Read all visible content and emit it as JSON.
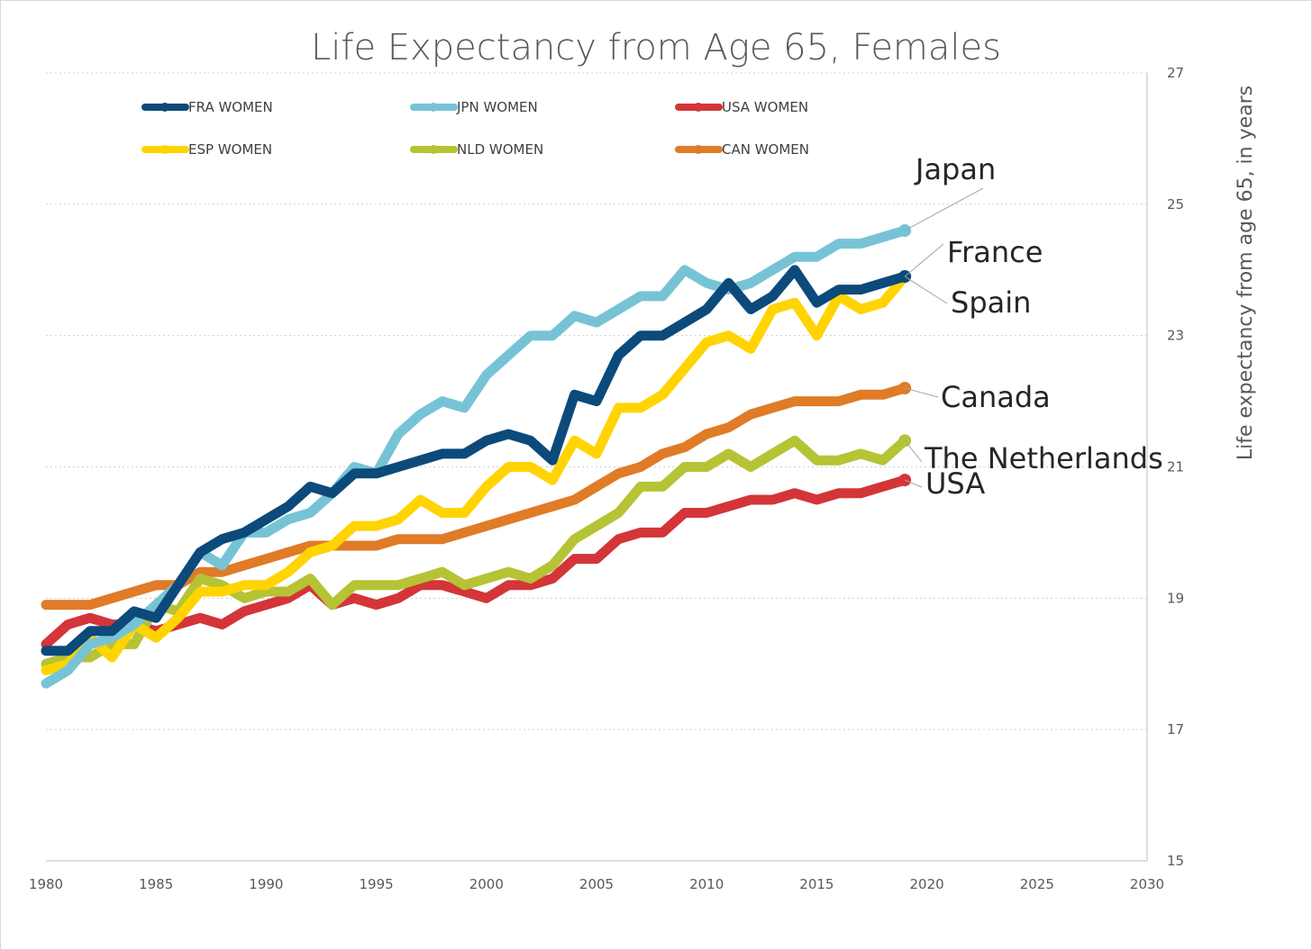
{
  "chart_data": {
    "type": "line",
    "title": "Life Expectancy from Age 65, Females",
    "ylabel": "Life expectancy from age 65, in years",
    "xlabel": "",
    "xlim": [
      1980,
      2030
    ],
    "ylim": [
      15,
      27
    ],
    "x_ticks": [
      1980,
      1985,
      1990,
      1995,
      2000,
      2005,
      2010,
      2015,
      2020,
      2025,
      2030
    ],
    "y_ticks": [
      15,
      17,
      19,
      21,
      23,
      25,
      27
    ],
    "y_axis_side": "right",
    "grid": "horizontal dotted",
    "legend_position": "top-left",
    "x": [
      1980,
      1981,
      1982,
      1983,
      1984,
      1985,
      1986,
      1987,
      1988,
      1989,
      1990,
      1991,
      1992,
      1993,
      1994,
      1995,
      1996,
      1997,
      1998,
      1999,
      2000,
      2001,
      2002,
      2003,
      2004,
      2005,
      2006,
      2007,
      2008,
      2009,
      2010,
      2011,
      2012,
      2013,
      2014,
      2015,
      2016,
      2017,
      2018,
      2019
    ],
    "series": [
      {
        "name": "FRA WOMEN",
        "color": "#0b4a7a",
        "annotation": "France",
        "values": [
          18.2,
          18.2,
          18.5,
          18.5,
          18.8,
          18.7,
          19.2,
          19.7,
          19.9,
          20.0,
          20.2,
          20.4,
          20.7,
          20.6,
          20.9,
          20.9,
          21.0,
          21.1,
          21.2,
          21.2,
          21.4,
          21.5,
          21.4,
          21.1,
          22.1,
          22.0,
          22.7,
          23.0,
          23.0,
          23.2,
          23.4,
          23.8,
          23.4,
          23.6,
          24.0,
          23.5,
          23.7,
          23.7,
          23.8,
          23.9
        ]
      },
      {
        "name": "JPN WOMEN",
        "color": "#77c3d6",
        "annotation": "Japan",
        "values": [
          17.7,
          17.9,
          18.3,
          18.4,
          18.6,
          18.9,
          19.2,
          19.7,
          19.5,
          20.0,
          20.0,
          20.2,
          20.3,
          20.6,
          21.0,
          20.9,
          21.5,
          21.8,
          22.0,
          21.9,
          22.4,
          22.7,
          23.0,
          23.0,
          23.3,
          23.2,
          23.4,
          23.6,
          23.6,
          24.0,
          23.8,
          23.7,
          23.8,
          24.0,
          24.2,
          24.2,
          24.4,
          24.4,
          24.5,
          24.6
        ]
      },
      {
        "name": "USA WOMEN",
        "color": "#d43538",
        "annotation": "USA",
        "values": [
          18.3,
          18.6,
          18.7,
          18.6,
          18.6,
          18.5,
          18.6,
          18.7,
          18.6,
          18.8,
          18.9,
          19.0,
          19.2,
          18.9,
          19.0,
          18.9,
          19.0,
          19.2,
          19.2,
          19.1,
          19.0,
          19.2,
          19.2,
          19.3,
          19.6,
          19.6,
          19.9,
          20.0,
          20.0,
          20.3,
          20.3,
          20.4,
          20.5,
          20.5,
          20.6,
          20.5,
          20.6,
          20.6,
          20.7,
          20.8
        ]
      },
      {
        "name": "ESP WOMEN",
        "color": "#ffd400",
        "annotation": "Spain",
        "values": [
          17.9,
          18.0,
          18.4,
          18.1,
          18.6,
          18.4,
          18.7,
          19.1,
          19.1,
          19.2,
          19.2,
          19.4,
          19.7,
          19.8,
          20.1,
          20.1,
          20.2,
          20.5,
          20.3,
          20.3,
          20.7,
          21.0,
          21.0,
          20.8,
          21.4,
          21.2,
          21.9,
          21.9,
          22.1,
          22.5,
          22.9,
          23.0,
          22.8,
          23.4,
          23.5,
          23.0,
          23.6,
          23.4,
          23.5,
          23.9
        ]
      },
      {
        "name": "NLD WOMEN",
        "color": "#b5c334",
        "annotation": "The Netherlands",
        "values": [
          18.0,
          18.1,
          18.1,
          18.3,
          18.3,
          18.9,
          18.8,
          19.3,
          19.2,
          19.0,
          19.1,
          19.1,
          19.3,
          18.9,
          19.2,
          19.2,
          19.2,
          19.3,
          19.4,
          19.2,
          19.3,
          19.4,
          19.3,
          19.5,
          19.9,
          20.1,
          20.3,
          20.7,
          20.7,
          21.0,
          21.0,
          21.2,
          21.0,
          21.2,
          21.4,
          21.1,
          21.1,
          21.2,
          21.1,
          21.4
        ]
      },
      {
        "name": "CAN WOMEN",
        "color": "#e07b27",
        "annotation": "Canada",
        "values": [
          18.9,
          18.9,
          18.9,
          19.0,
          19.1,
          19.2,
          19.2,
          19.4,
          19.4,
          19.5,
          19.6,
          19.7,
          19.8,
          19.8,
          19.8,
          19.8,
          19.9,
          19.9,
          19.9,
          20.0,
          20.1,
          20.2,
          20.3,
          20.4,
          20.5,
          20.7,
          20.9,
          21.0,
          21.2,
          21.3,
          21.5,
          21.6,
          21.8,
          21.9,
          22.0,
          22.0,
          22.0,
          22.1,
          22.1,
          22.2
        ]
      }
    ]
  }
}
